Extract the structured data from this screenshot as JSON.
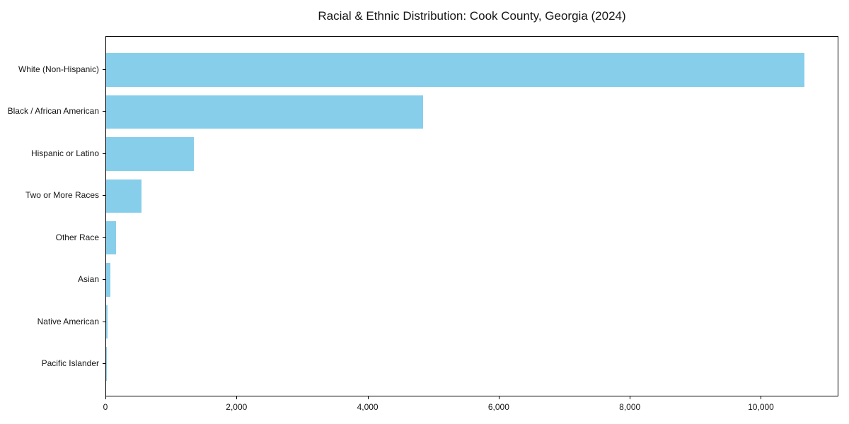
{
  "title": "Racial & Ethnic Distribution: Cook County, Georgia (2024)",
  "colors": {
    "bar": "#87CEEB",
    "spine": "#000000",
    "text": "#151515",
    "background": "#ffffff"
  },
  "chart_data": {
    "type": "bar",
    "orientation": "horizontal",
    "title": "Racial & Ethnic Distribution: Cook County, Georgia (2024)",
    "categories": [
      "White (Non-Hispanic)",
      "Black / African American",
      "Hispanic or Latino",
      "Two or More Races",
      "Other Race",
      "Asian",
      "Native American",
      "Pacific Islander"
    ],
    "values": [
      10650,
      4835,
      1340,
      540,
      150,
      60,
      20,
      5
    ],
    "bar_color": "#87CEEB",
    "xlabel": "",
    "ylabel": "",
    "xlim": [
      0,
      11182
    ],
    "x_ticks": [
      0,
      2000,
      4000,
      6000,
      8000,
      10000
    ],
    "x_tick_labels": [
      "0",
      "2,000",
      "4,000",
      "6,000",
      "8,000",
      "10,000"
    ],
    "grid": false,
    "legend": null
  }
}
